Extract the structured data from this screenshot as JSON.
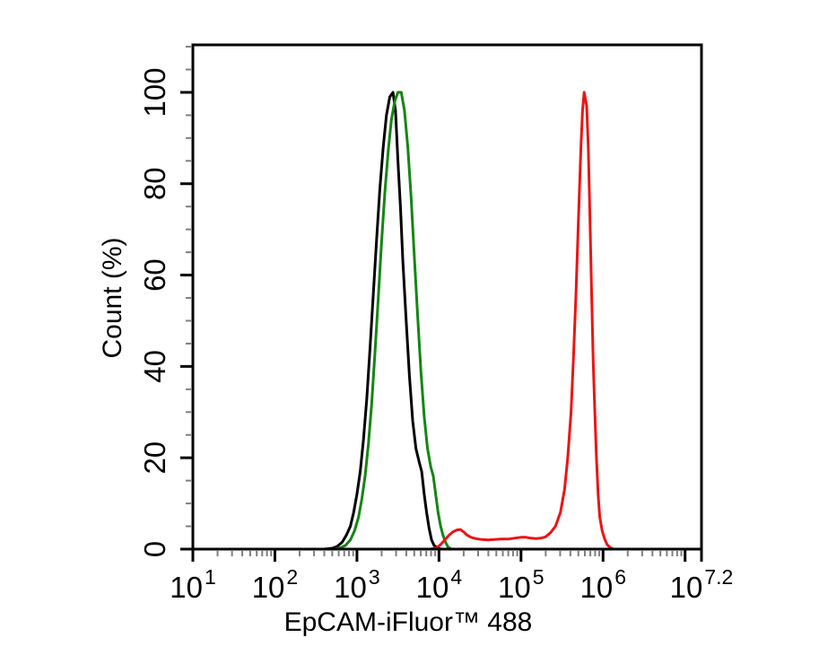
{
  "chart_data": {
    "type": "line",
    "variant": "flow-cytometry-histogram-overlay",
    "title": "",
    "xlabel": "EpCAM-iFluor™ 488",
    "ylabel": "Count (%)",
    "x_scale": "log10",
    "x_log_min": 1.0,
    "x_log_max": 7.2,
    "y_min": 0,
    "y_max_display": 110.4,
    "grid": false,
    "legend": null,
    "tick_base": "10",
    "x_major_ticks": [
      {
        "log": 1,
        "exp": "1"
      },
      {
        "log": 2,
        "exp": "2"
      },
      {
        "log": 3,
        "exp": "3"
      },
      {
        "log": 4,
        "exp": "4"
      },
      {
        "log": 5,
        "exp": "5"
      },
      {
        "log": 6,
        "exp": "6"
      },
      {
        "log": 7,
        "exp": null
      },
      {
        "log": 7.2,
        "exp": "7.2"
      }
    ],
    "x_minor_ticks_rule": "k×10^n for k=2..9, n=1..6",
    "y_major_ticks": [
      {
        "value": 0,
        "label": "0"
      },
      {
        "value": 20,
        "label": "20"
      },
      {
        "value": 40,
        "label": "40"
      },
      {
        "value": 60,
        "label": "60"
      },
      {
        "value": 80,
        "label": "80"
      },
      {
        "value": 100,
        "label": "100"
      }
    ],
    "y_minor_tick_step": 5,
    "colors": {
      "black_curve": "#000000",
      "green_curve": "#148614",
      "red_curve": "#ec1414"
    },
    "series": [
      {
        "name": "black-curve",
        "color": "#000000",
        "peak": {
          "log": 3.44,
          "percent": 100
        },
        "points": [
          [
            1.0,
            0
          ],
          [
            2.6,
            0
          ],
          [
            2.7,
            0.2
          ],
          [
            2.76,
            0.6
          ],
          [
            2.82,
            1.5
          ],
          [
            2.87,
            3
          ],
          [
            2.92,
            5
          ],
          [
            2.96,
            8
          ],
          [
            3.0,
            12
          ],
          [
            3.04,
            17
          ],
          [
            3.08,
            24
          ],
          [
            3.12,
            33
          ],
          [
            3.16,
            44
          ],
          [
            3.2,
            56
          ],
          [
            3.24,
            68
          ],
          [
            3.28,
            79
          ],
          [
            3.32,
            88
          ],
          [
            3.36,
            95
          ],
          [
            3.4,
            99
          ],
          [
            3.44,
            100
          ],
          [
            3.47,
            96
          ],
          [
            3.5,
            85
          ],
          [
            3.53,
            75
          ],
          [
            3.56,
            63
          ],
          [
            3.6,
            50
          ],
          [
            3.64,
            38
          ],
          [
            3.68,
            28
          ],
          [
            3.72,
            22
          ],
          [
            3.76,
            19
          ],
          [
            3.79,
            17
          ],
          [
            3.82,
            12
          ],
          [
            3.85,
            8
          ],
          [
            3.88,
            4.5
          ],
          [
            3.91,
            2
          ],
          [
            3.94,
            0.8
          ],
          [
            3.98,
            0.3
          ],
          [
            4.03,
            0
          ],
          [
            7.2,
            0
          ]
        ]
      },
      {
        "name": "green-curve",
        "color": "#148614",
        "peak": {
          "log": 3.53,
          "percent": 100
        },
        "points": [
          [
            1.0,
            0
          ],
          [
            2.72,
            0
          ],
          [
            2.8,
            0.3
          ],
          [
            2.86,
            0.8
          ],
          [
            2.92,
            2
          ],
          [
            2.97,
            4
          ],
          [
            3.02,
            7
          ],
          [
            3.06,
            11
          ],
          [
            3.1,
            16
          ],
          [
            3.14,
            23
          ],
          [
            3.18,
            32
          ],
          [
            3.22,
            43
          ],
          [
            3.26,
            55
          ],
          [
            3.3,
            67
          ],
          [
            3.34,
            78
          ],
          [
            3.38,
            87
          ],
          [
            3.42,
            94
          ],
          [
            3.46,
            98
          ],
          [
            3.5,
            100
          ],
          [
            3.54,
            100
          ],
          [
            3.58,
            96
          ],
          [
            3.62,
            88
          ],
          [
            3.66,
            77
          ],
          [
            3.7,
            64
          ],
          [
            3.74,
            51
          ],
          [
            3.78,
            39
          ],
          [
            3.82,
            29
          ],
          [
            3.86,
            22
          ],
          [
            3.9,
            18
          ],
          [
            3.93,
            16
          ],
          [
            3.96,
            12
          ],
          [
            3.99,
            8
          ],
          [
            4.02,
            5
          ],
          [
            4.05,
            3
          ],
          [
            4.08,
            1.5
          ],
          [
            4.11,
            0.5
          ],
          [
            4.15,
            0
          ],
          [
            7.2,
            0
          ]
        ]
      },
      {
        "name": "red-curve",
        "color": "#ec1414",
        "peak": {
          "log": 5.77,
          "percent": 100
        },
        "points": [
          [
            1.0,
            0
          ],
          [
            3.9,
            0
          ],
          [
            3.97,
            0.3
          ],
          [
            4.02,
            1
          ],
          [
            4.07,
            2
          ],
          [
            4.12,
            3
          ],
          [
            4.17,
            3.8
          ],
          [
            4.22,
            4.2
          ],
          [
            4.26,
            4.3
          ],
          [
            4.3,
            3.8
          ],
          [
            4.34,
            3.1
          ],
          [
            4.39,
            2.6
          ],
          [
            4.45,
            2.3
          ],
          [
            4.52,
            2.1
          ],
          [
            4.6,
            2.0
          ],
          [
            4.68,
            2.1
          ],
          [
            4.76,
            2.2
          ],
          [
            4.84,
            2.2
          ],
          [
            4.92,
            2.4
          ],
          [
            5.0,
            2.6
          ],
          [
            5.06,
            2.6
          ],
          [
            5.12,
            2.4
          ],
          [
            5.18,
            2.3
          ],
          [
            5.24,
            2.4
          ],
          [
            5.3,
            2.7
          ],
          [
            5.36,
            3.6
          ],
          [
            5.42,
            5
          ],
          [
            5.48,
            8
          ],
          [
            5.53,
            13
          ],
          [
            5.57,
            20
          ],
          [
            5.61,
            30
          ],
          [
            5.64,
            42
          ],
          [
            5.67,
            56
          ],
          [
            5.7,
            72
          ],
          [
            5.73,
            88
          ],
          [
            5.75,
            96
          ],
          [
            5.77,
            100
          ],
          [
            5.8,
            97
          ],
          [
            5.82,
            88
          ],
          [
            5.84,
            73
          ],
          [
            5.86,
            56
          ],
          [
            5.88,
            41
          ],
          [
            5.9,
            30
          ],
          [
            5.92,
            20
          ],
          [
            5.94,
            12
          ],
          [
            5.96,
            7
          ],
          [
            5.99,
            4
          ],
          [
            6.02,
            2.2
          ],
          [
            6.05,
            1
          ],
          [
            6.09,
            0.3
          ],
          [
            6.13,
            0
          ],
          [
            7.2,
            0
          ]
        ]
      }
    ]
  }
}
